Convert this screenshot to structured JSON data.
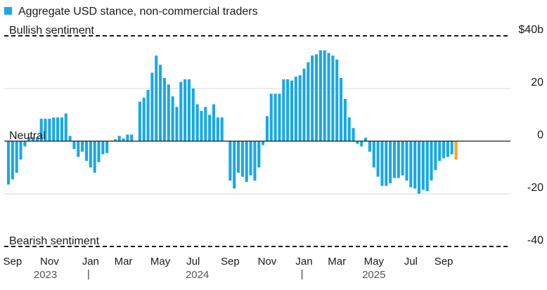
{
  "chart_data": {
    "type": "bar",
    "legend": {
      "label": "Aggregate USD stance, non-commercial traders",
      "color": "#1aa7e6"
    },
    "ylim": [
      -40,
      40
    ],
    "y_ticks": [
      {
        "value": 40,
        "label": "$40b"
      },
      {
        "value": 20,
        "label": "20"
      },
      {
        "value": 0,
        "label": "0"
      },
      {
        "value": -20,
        "label": "-20"
      },
      {
        "value": -40,
        "label": "-40"
      }
    ],
    "reference_lines": [
      {
        "value": 40,
        "label": "Bullish sentiment",
        "style": "dashed"
      },
      {
        "value": 0,
        "label": "Neutral",
        "style": "solid"
      },
      {
        "value": -40,
        "label": "Bearish sentiment",
        "style": "dashed"
      }
    ],
    "x_month_labels": [
      {
        "label": "Sep",
        "bar": 1
      },
      {
        "label": "Nov",
        "bar": 10
      },
      {
        "label": "Jan",
        "bar": 20
      },
      {
        "label": "Mar",
        "bar": 28
      },
      {
        "label": "May",
        "bar": 37
      },
      {
        "label": "Jul",
        "bar": 45
      },
      {
        "label": "Sep",
        "bar": 54
      },
      {
        "label": "Nov",
        "bar": 63
      },
      {
        "label": "Jan",
        "bar": 72
      },
      {
        "label": "Mar",
        "bar": 80
      },
      {
        "label": "May",
        "bar": 89
      },
      {
        "label": "Jul",
        "bar": 98
      },
      {
        "label": "Sep",
        "bar": 106
      }
    ],
    "x_year_labels": [
      {
        "label": "2023",
        "bar": 9
      },
      {
        "label": "2024",
        "bar": 46
      },
      {
        "label": "2025",
        "bar": 89
      }
    ],
    "year_dividers": [
      19.5,
      71.5
    ],
    "colors": {
      "bar": "#1aa7e6",
      "highlight": "#f5a623"
    },
    "series": [
      {
        "values": [
          -16.5,
          -14.5,
          -12,
          -7,
          -2,
          1.5,
          1.5,
          1.5,
          8.5,
          8.5,
          8.5,
          9,
          9,
          9,
          10.5,
          2,
          -3,
          -6,
          -4,
          -7.5,
          -10,
          -12,
          -8,
          -5,
          -4.5,
          0,
          0.7,
          2,
          1,
          2.5,
          2.5,
          0,
          15,
          16.5,
          19.5,
          26,
          32.5,
          29,
          24,
          21.5,
          17,
          13,
          22.5,
          23.5,
          23.5,
          20,
          14,
          11.5,
          13,
          10,
          14,
          9,
          9,
          0,
          -15,
          -18,
          -12,
          -13.5,
          -15.5,
          -13,
          -15,
          -10,
          -1.5,
          9.5,
          18,
          18,
          18,
          23.5,
          23.5,
          23,
          24.5,
          25,
          27.5,
          30,
          32.5,
          33,
          34.5,
          34.5,
          33.5,
          32.5,
          31,
          24,
          16,
          9,
          5,
          -1,
          -2,
          1.3,
          -4,
          -10,
          -13.5,
          -17,
          -17,
          -16,
          -14,
          -14,
          -13,
          -15,
          -17.5,
          -18,
          -20,
          -18.5,
          -19,
          -15,
          -11,
          -7.5,
          -6.5,
          -6,
          -5,
          -7
        ]
      }
    ],
    "highlight_last_value": -7
  }
}
